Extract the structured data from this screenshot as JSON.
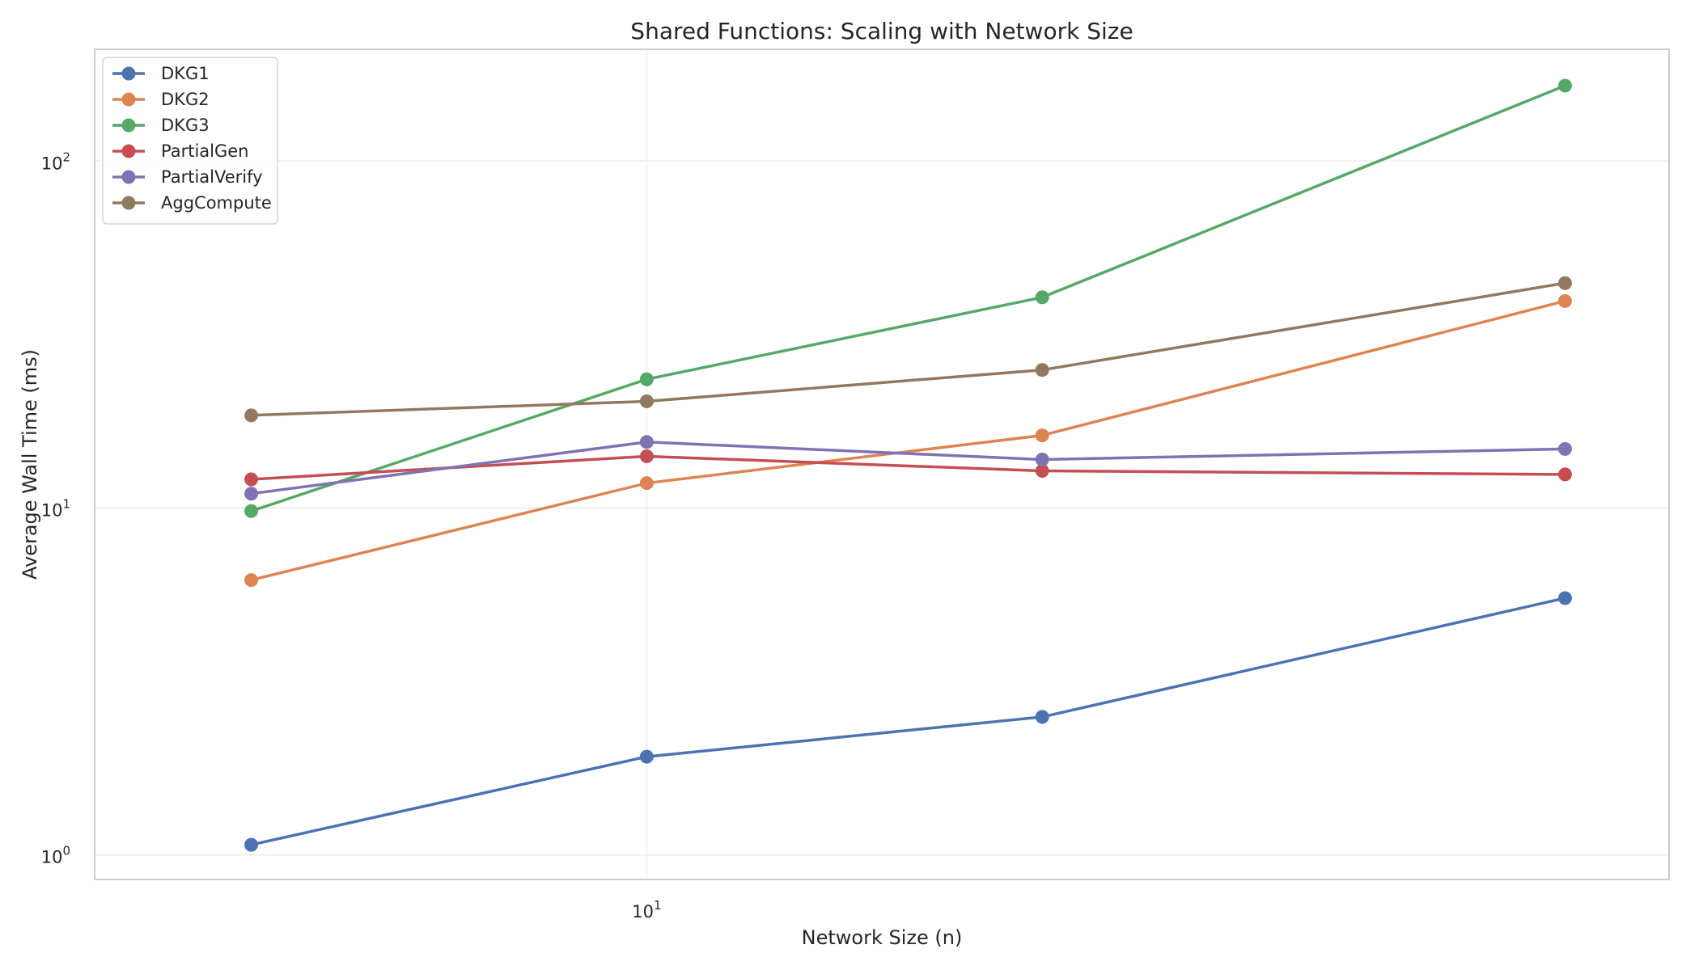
{
  "chart_data": {
    "type": "line",
    "title": "Shared Functions: Scaling with Network Size",
    "xlabel": "Network Size (n)",
    "ylabel": "Average Wall Time (ms)",
    "xscale": "log",
    "yscale": "log",
    "x": [
      5,
      10,
      20,
      50
    ],
    "xlim": [
      3.8,
      60
    ],
    "ylim": [
      0.85,
      210
    ],
    "xticks": [
      {
        "base": "10",
        "exp": "1",
        "value": 10
      }
    ],
    "yticks": [
      {
        "base": "10",
        "exp": "0",
        "value": 1
      },
      {
        "base": "10",
        "exp": "1",
        "value": 10
      },
      {
        "base": "10",
        "exp": "2",
        "value": 100
      }
    ],
    "grid": true,
    "legend_position": "top-left",
    "series": [
      {
        "name": "DKG1",
        "color": "#4c72b0",
        "values": [
          1.07,
          1.92,
          2.5,
          5.5
        ]
      },
      {
        "name": "DKG2",
        "color": "#dd8452",
        "values": [
          6.2,
          11.8,
          16.2,
          39.5
        ]
      },
      {
        "name": "DKG3",
        "color": "#55a868",
        "values": [
          9.8,
          23.5,
          40.5,
          165
        ]
      },
      {
        "name": "PartialGen",
        "color": "#c44e52",
        "values": [
          12.1,
          14.1,
          12.8,
          12.5
        ]
      },
      {
        "name": "PartialVerify",
        "color": "#8172b3",
        "values": [
          11.0,
          15.5,
          13.8,
          14.8
        ]
      },
      {
        "name": "AggCompute",
        "color": "#937860",
        "values": [
          18.5,
          20.3,
          25.0,
          44.5
        ]
      }
    ]
  }
}
